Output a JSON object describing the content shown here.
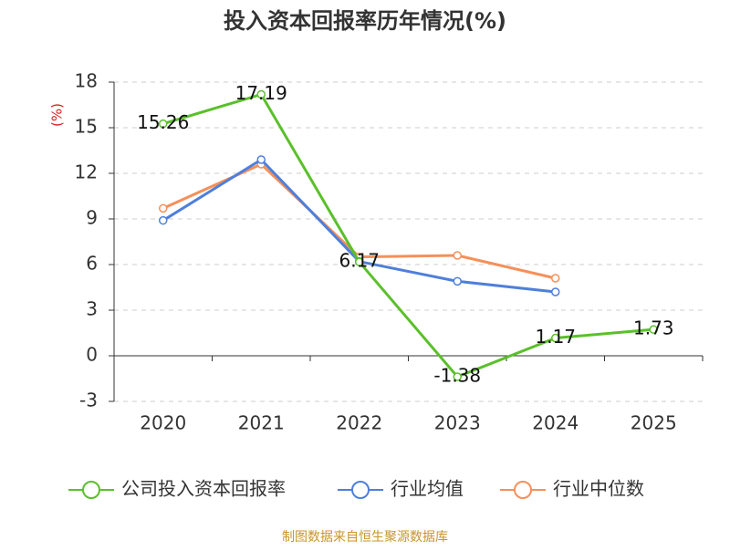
{
  "chart_data": {
    "type": "line",
    "title": "投入资本回报率历年情况(%)",
    "y_label": "(%)",
    "categories": [
      "2020",
      "2021",
      "2022",
      "2023",
      "2024",
      "2025"
    ],
    "series": [
      {
        "name": "公司投入资本回报率",
        "color": "#5ac02a",
        "values": [
          15.26,
          17.19,
          6.17,
          -1.38,
          1.17,
          1.73
        ],
        "value_labels": [
          "15.26",
          "17.19",
          "6.17",
          "-1.38",
          "1.17",
          "1.73"
        ]
      },
      {
        "name": "行业均值",
        "color": "#4e7fdc",
        "values": [
          8.9,
          12.9,
          6.2,
          4.9,
          4.2,
          null
        ]
      },
      {
        "name": "行业中位数",
        "color": "#f5905a",
        "values": [
          9.7,
          12.6,
          6.5,
          6.6,
          5.1,
          null
        ]
      }
    ],
    "ylim": [
      -3,
      18
    ],
    "yticks": [
      -3,
      0,
      3,
      6,
      9,
      12,
      15,
      18
    ],
    "grid": true,
    "source": "制图数据来自恒生聚源数据库"
  }
}
